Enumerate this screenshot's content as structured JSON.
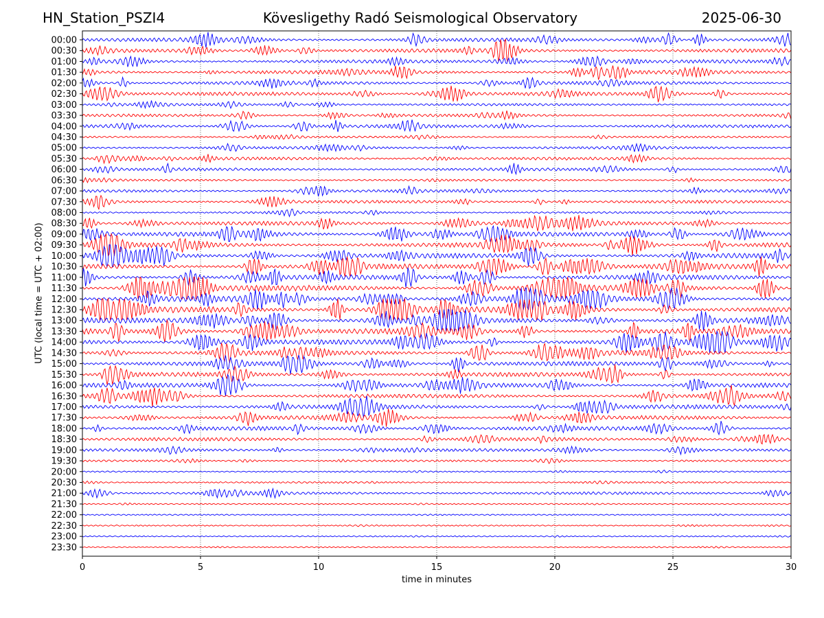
{
  "header": {
    "station": "HN_Station_PSZI4",
    "observatory": "Kövesligethy Radó Seismological Observatory",
    "date": "2025-06-30"
  },
  "colors": {
    "even_trace": "#0000ff",
    "odd_trace": "#ff0000",
    "frame": "#000000"
  },
  "chart_data": {
    "type": "line",
    "xlabel": "time in minutes",
    "ylabel": "UTC (local time = UTC + 02:00)",
    "xlim": [
      0,
      30
    ],
    "xticks": [
      0,
      5,
      10,
      15,
      20,
      25,
      30
    ],
    "grid_x": true,
    "rows": [
      "00:00",
      "00:30",
      "01:00",
      "01:30",
      "02:00",
      "02:30",
      "03:00",
      "03:30",
      "04:00",
      "04:30",
      "05:00",
      "05:30",
      "06:00",
      "06:30",
      "07:00",
      "07:30",
      "08:00",
      "08:30",
      "09:00",
      "09:30",
      "10:00",
      "10:30",
      "11:00",
      "11:30",
      "12:00",
      "12:30",
      "13:00",
      "13:30",
      "14:00",
      "14:30",
      "15:00",
      "15:30",
      "16:00",
      "16:30",
      "17:00",
      "17:30",
      "18:00",
      "18:30",
      "19:00",
      "19:30",
      "20:00",
      "20:30",
      "21:00",
      "21:30",
      "22:00",
      "22:30",
      "23:00",
      "23:30"
    ],
    "activity": [
      0.55,
      0.55,
      0.5,
      0.55,
      0.5,
      0.55,
      0.3,
      0.35,
      0.45,
      0.2,
      0.35,
      0.4,
      0.4,
      0.2,
      0.35,
      0.4,
      0.2,
      0.6,
      0.7,
      0.75,
      0.8,
      0.85,
      0.8,
      0.95,
      1.0,
      1.0,
      0.9,
      0.9,
      0.85,
      0.8,
      0.7,
      0.65,
      0.7,
      0.6,
      0.65,
      0.6,
      0.6,
      0.5,
      0.4,
      0.2,
      0.08,
      0.15,
      0.35,
      0.06,
      0.05,
      0.06,
      0.05,
      0.05
    ]
  }
}
